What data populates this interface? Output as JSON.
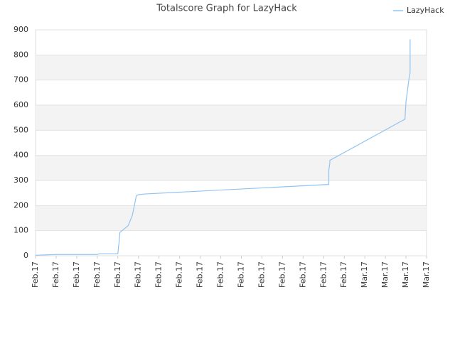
{
  "chart_data": {
    "type": "line",
    "title": "Totalscore Graph for LazyHack",
    "series": [
      {
        "name": "LazyHack",
        "color": "#90c4f0",
        "x": [
          0,
          1,
          3,
          3.1,
          4,
          4.03,
          4.07,
          4.1,
          4.5,
          4.7,
          4.8,
          4.9,
          5,
          5.3,
          14.25,
          14.25,
          14.3,
          14.3,
          17.95,
          18,
          18.15,
          18.2,
          18.2
        ],
        "values": [
          2,
          5,
          5,
          8,
          8,
          35,
          60,
          93,
          120,
          160,
          200,
          240,
          243,
          246,
          284,
          340,
          370,
          380,
          544,
          614,
          707,
          730,
          862
        ]
      }
    ],
    "xlim": [
      0,
      19
    ],
    "xticks": [
      {
        "value": 0,
        "label": "Feb.17"
      },
      {
        "value": 1,
        "label": "Feb.17"
      },
      {
        "value": 2,
        "label": "Feb.17"
      },
      {
        "value": 3,
        "label": "Feb.17"
      },
      {
        "value": 4,
        "label": "Feb.17"
      },
      {
        "value": 5,
        "label": "Feb.17"
      },
      {
        "value": 6,
        "label": "Feb.17"
      },
      {
        "value": 7,
        "label": "Feb.17"
      },
      {
        "value": 8,
        "label": "Feb.17"
      },
      {
        "value": 9,
        "label": "Feb.17"
      },
      {
        "value": 10,
        "label": "Feb.17"
      },
      {
        "value": 11,
        "label": "Feb.17"
      },
      {
        "value": 12,
        "label": "Feb.17"
      },
      {
        "value": 13,
        "label": "Feb.17"
      },
      {
        "value": 14,
        "label": "Feb.17"
      },
      {
        "value": 15,
        "label": "Feb.17"
      },
      {
        "value": 16,
        "label": "Mar.17"
      },
      {
        "value": 17,
        "label": "Mar.17"
      },
      {
        "value": 18,
        "label": "Mar.17"
      },
      {
        "value": 19,
        "label": "Mar.17"
      }
    ],
    "ylim": [
      0,
      900
    ],
    "yticks": [
      0,
      100,
      200,
      300,
      400,
      500,
      600,
      700,
      800,
      900
    ],
    "grid": true,
    "legend": "top-right"
  }
}
